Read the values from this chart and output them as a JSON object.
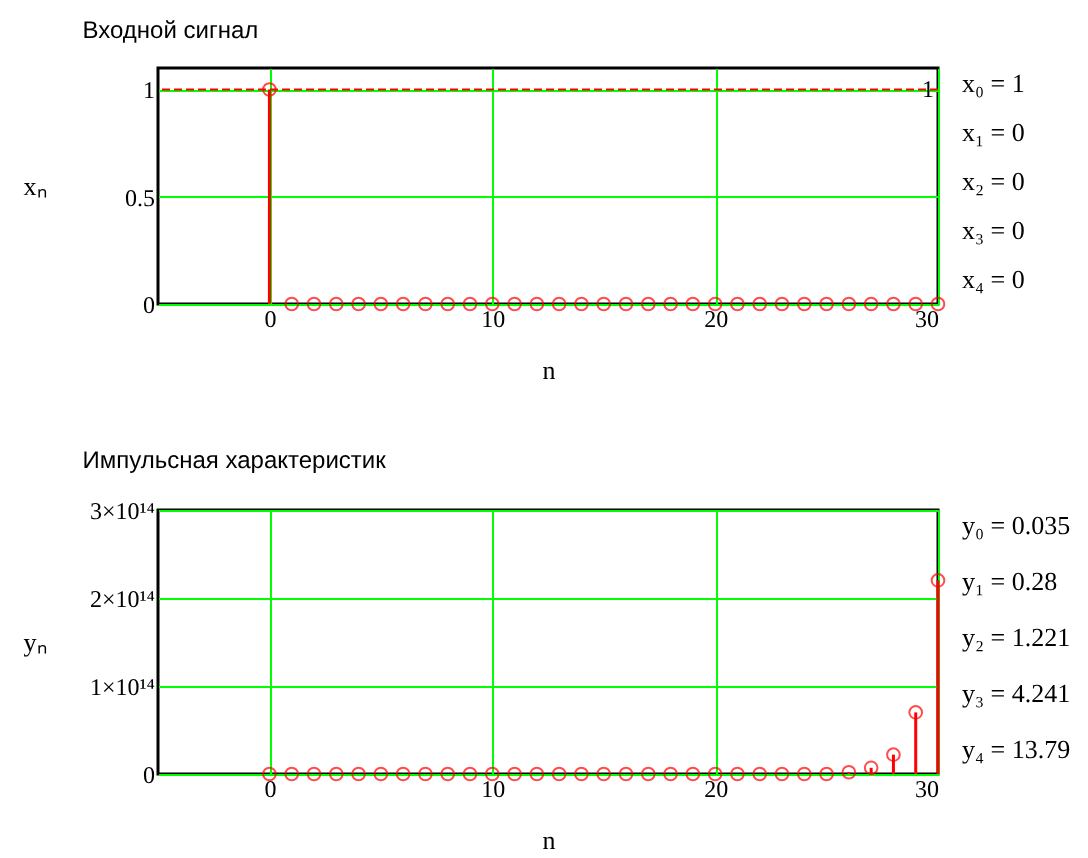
{
  "chart_data": [
    {
      "type": "lollipop",
      "title": "Входной сигнал",
      "xlabel": "n",
      "ylabel": "xₙ",
      "x": [
        0,
        1,
        2,
        3,
        4,
        5,
        6,
        7,
        8,
        9,
        10,
        11,
        12,
        13,
        14,
        15,
        16,
        17,
        18,
        19,
        20,
        21,
        22,
        23,
        24,
        25,
        26,
        27,
        28,
        29,
        30
      ],
      "series": [
        {
          "color": "#ff0000",
          "values": [
            1,
            0,
            0,
            0,
            0,
            0,
            0,
            0,
            0,
            0,
            0,
            0,
            0,
            0,
            0,
            0,
            0,
            0,
            0,
            0,
            0,
            0,
            0,
            0,
            0,
            0,
            0,
            0,
            0,
            0,
            0
          ]
        }
      ],
      "xlim": [
        -5,
        30
      ],
      "xticks": [
        0,
        10,
        20,
        30
      ],
      "ylim": [
        0,
        1.1
      ],
      "yticks": [
        0,
        0.5,
        1
      ],
      "grid": true,
      "marker": "circle",
      "ref_lines": [
        {
          "axis": "y",
          "value": 1,
          "label": "1",
          "color": "#ff0000",
          "line_style": "dashed"
        }
      ],
      "annotations": [
        "x₀ = 1",
        "x₁ = 0",
        "x₂ = 0",
        "x₃ = 0",
        "x₄ = 0"
      ]
    },
    {
      "type": "lollipop",
      "title": "Импульсная характеристик",
      "xlabel": "n",
      "ylabel": "yₙ",
      "x": [
        0,
        1,
        2,
        3,
        4,
        5,
        6,
        7,
        8,
        9,
        10,
        11,
        12,
        13,
        14,
        15,
        16,
        17,
        18,
        19,
        20,
        21,
        22,
        23,
        24,
        25,
        26,
        27,
        28,
        29,
        30
      ],
      "series": [
        {
          "color": "#ff0000",
          "values": [
            0.035,
            0.28,
            1.221,
            4.241,
            13.79,
            0,
            0,
            0,
            0,
            0,
            0,
            0,
            0,
            0,
            0,
            0,
            0,
            0,
            0,
            0,
            0,
            0,
            0,
            0,
            0,
            0,
            2000000000000.0,
            7000000000000.0,
            22000000000000.0,
            70000000000000.0,
            220000000000000.0
          ]
        }
      ],
      "xlim": [
        -5,
        30
      ],
      "xticks": [
        0,
        10,
        20,
        30
      ],
      "ylim": [
        0,
        300000000000000.0
      ],
      "yticks": [
        0,
        {
          "value": 100000000000000.0,
          "label": "1×10¹⁴"
        },
        {
          "value": 200000000000000.0,
          "label": "2×10¹⁴"
        },
        {
          "value": 300000000000000.0,
          "label": "3×10¹⁴"
        }
      ],
      "grid": true,
      "marker": "circle",
      "annotations": [
        "y₀ = 0.035",
        "y₁ = 0.28",
        "y₂ = 1.221",
        "y₃ = 4.241",
        "y₄ = 13.79"
      ]
    }
  ]
}
